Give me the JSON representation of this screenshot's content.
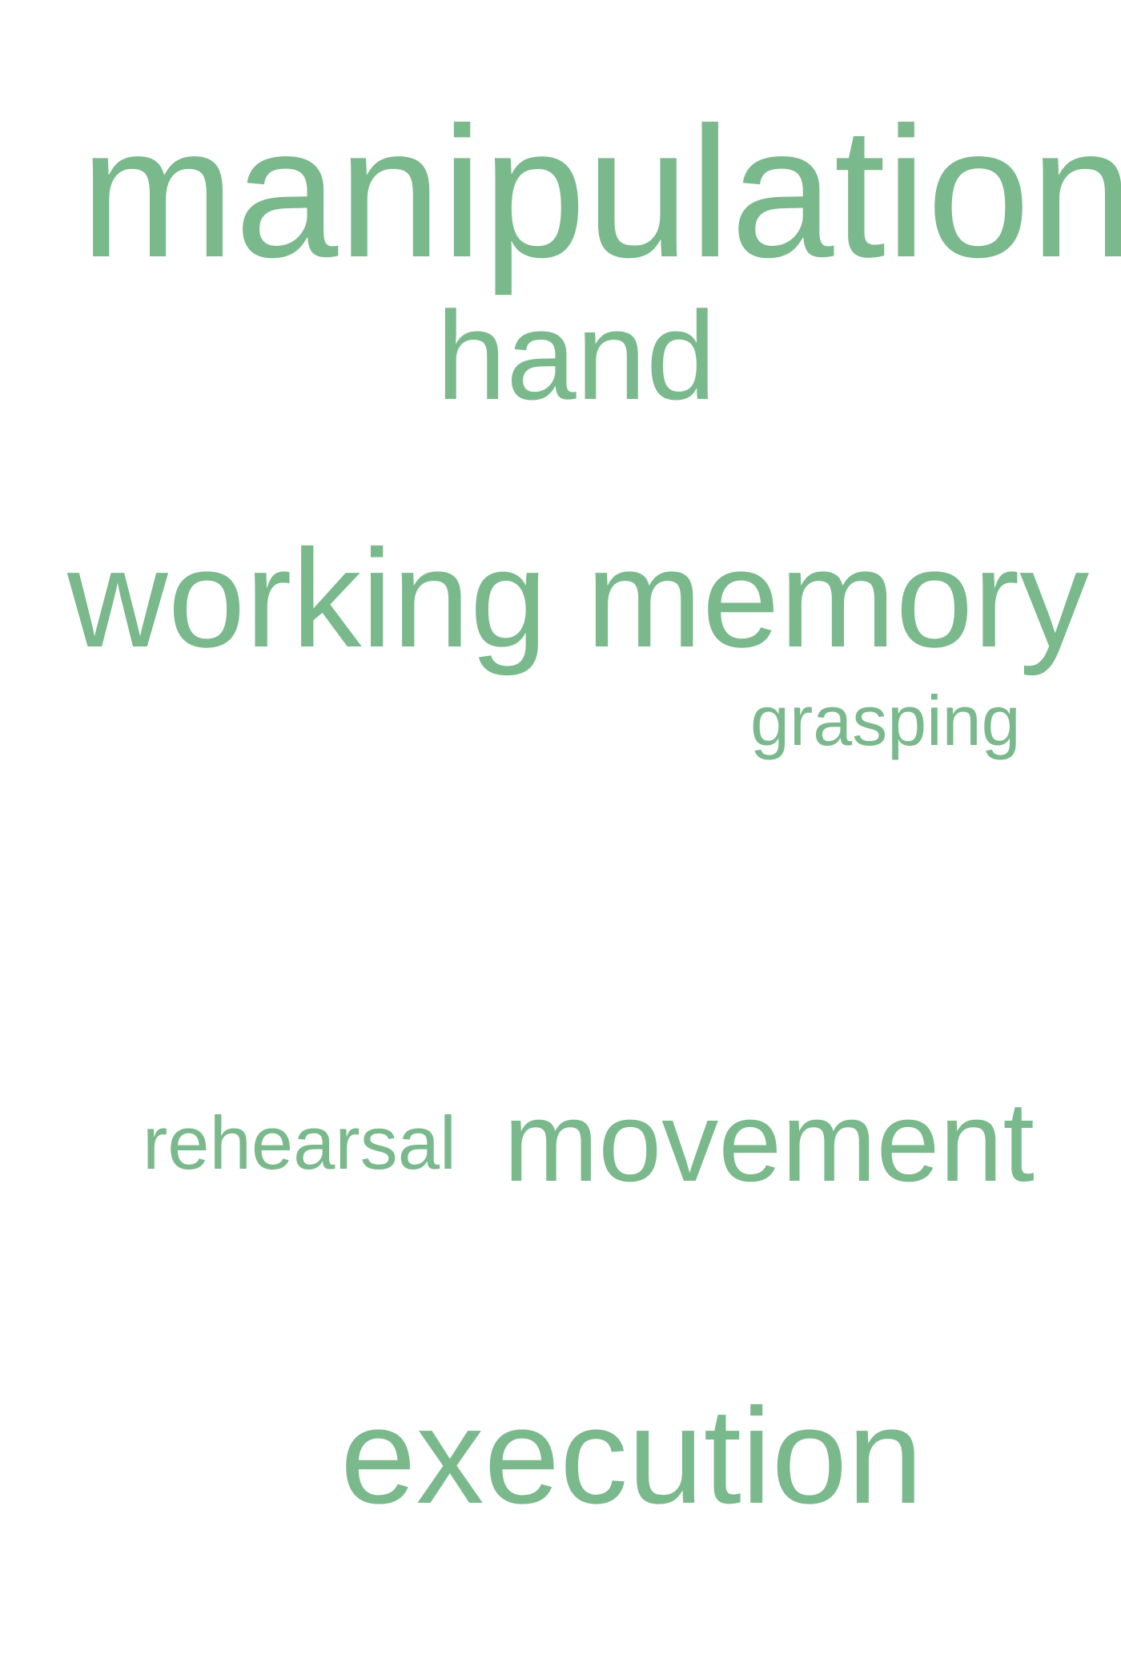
{
  "word_cloud": {
    "color": "#7ab98c",
    "words": [
      {
        "text": "manipulation"
      },
      {
        "text": "hand"
      },
      {
        "text": "working memory"
      },
      {
        "text": "grasping"
      },
      {
        "text": "rehearsal"
      },
      {
        "text": "movement"
      },
      {
        "text": "execution"
      }
    ]
  }
}
